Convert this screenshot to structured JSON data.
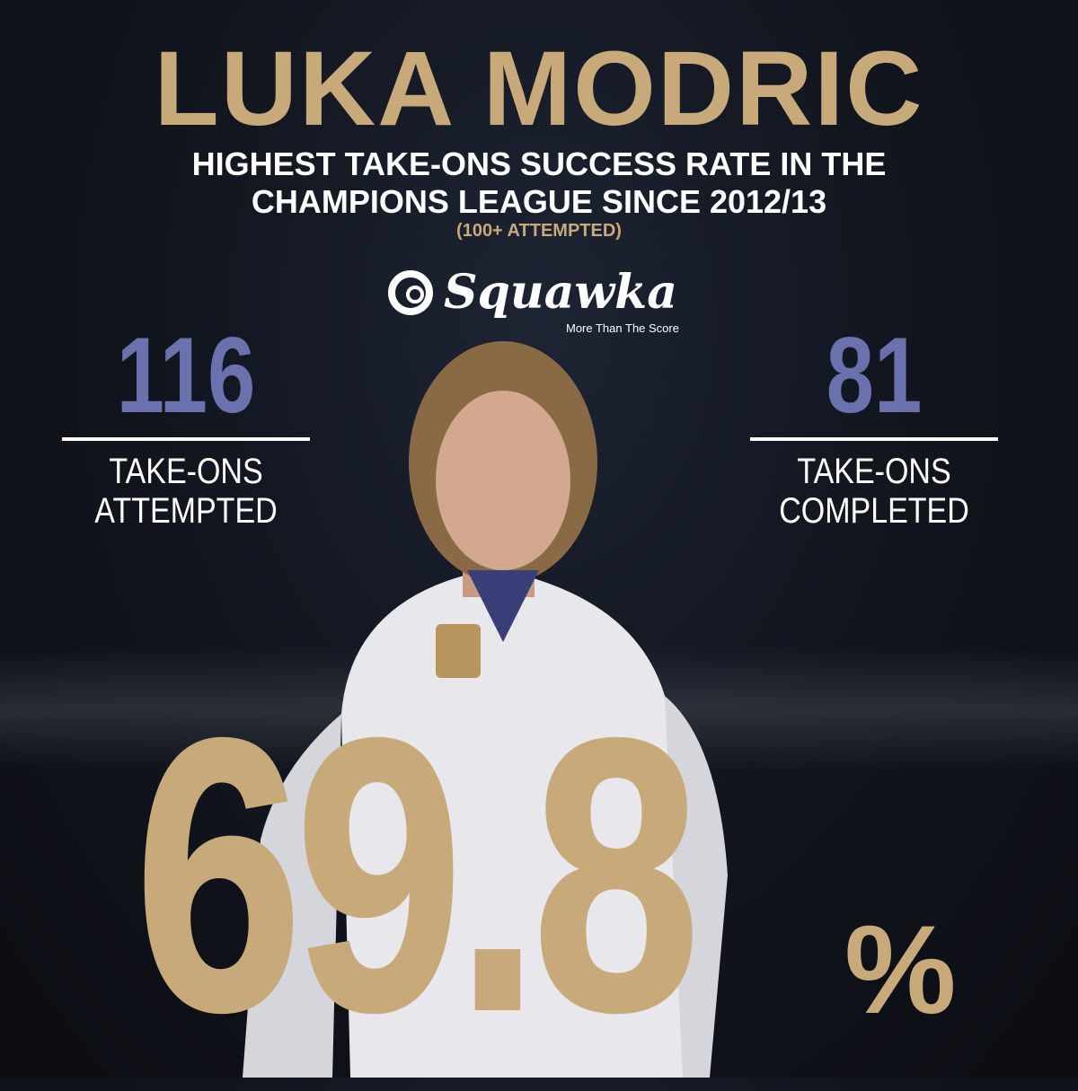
{
  "title": "LUKA MODRIC",
  "subtitle_line1": "HIGHEST TAKE-ONS SUCCESS RATE IN THE",
  "subtitle_line2": "CHAMPIONS LEAGUE SINCE 2012/13",
  "note": "(100+ ATTEMPTED)",
  "brand": {
    "name": "Squawka",
    "tagline": "More Than The Score"
  },
  "stats": [
    {
      "value": "116",
      "label_line1": "TAKE-ONS",
      "label_line2": "ATTEMPTED"
    },
    {
      "value": "81",
      "label_line1": "TAKE-ONS",
      "label_line2": "COMPLETED"
    }
  ],
  "success_rate": {
    "value": "69.8",
    "unit": "%"
  },
  "colors": {
    "gold": "#c7a97a",
    "blue": "#6a71ad"
  }
}
